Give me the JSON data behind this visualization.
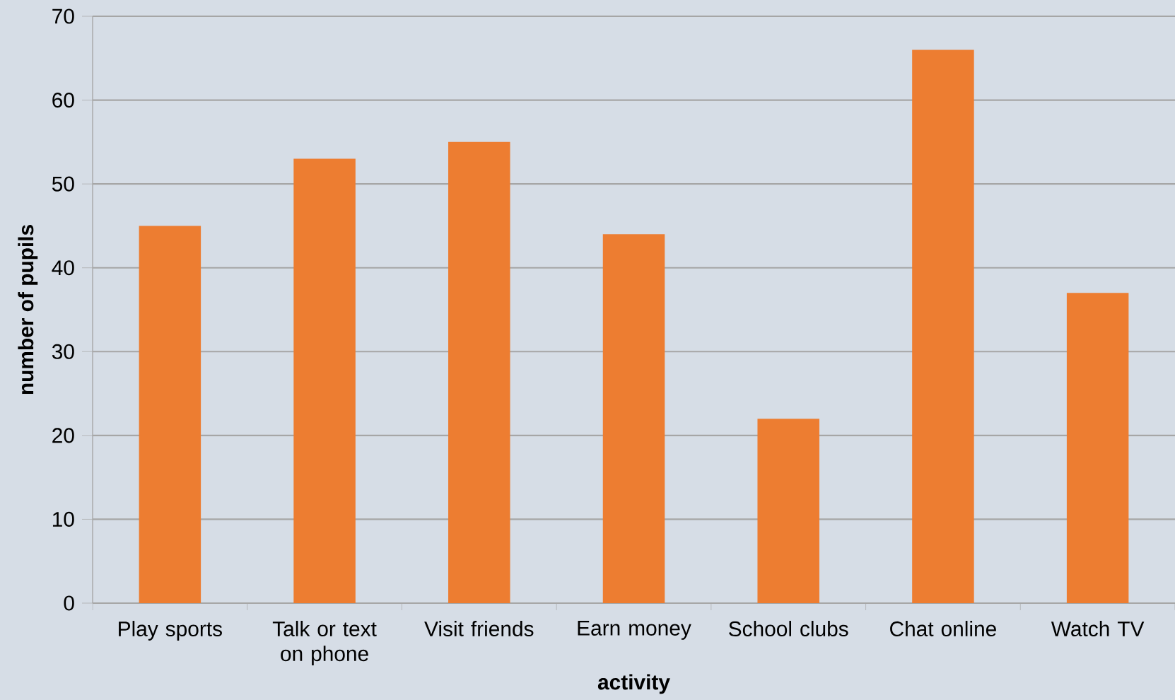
{
  "chart_data": {
    "type": "bar",
    "xlabel": "activity",
    "ylabel": "number of pupils",
    "categories": [
      "Play sports",
      "Talk or text on phone",
      "Visit friends",
      "Earn money",
      "School clubs",
      "Chat online",
      "Watch TV"
    ],
    "values": [
      45,
      53,
      55,
      44,
      22,
      66,
      37
    ],
    "color": "#ed7d31",
    "ylim": [
      0,
      70
    ],
    "yticks": [
      0,
      10,
      20,
      30,
      40,
      50,
      60,
      70
    ],
    "grid": "y"
  }
}
